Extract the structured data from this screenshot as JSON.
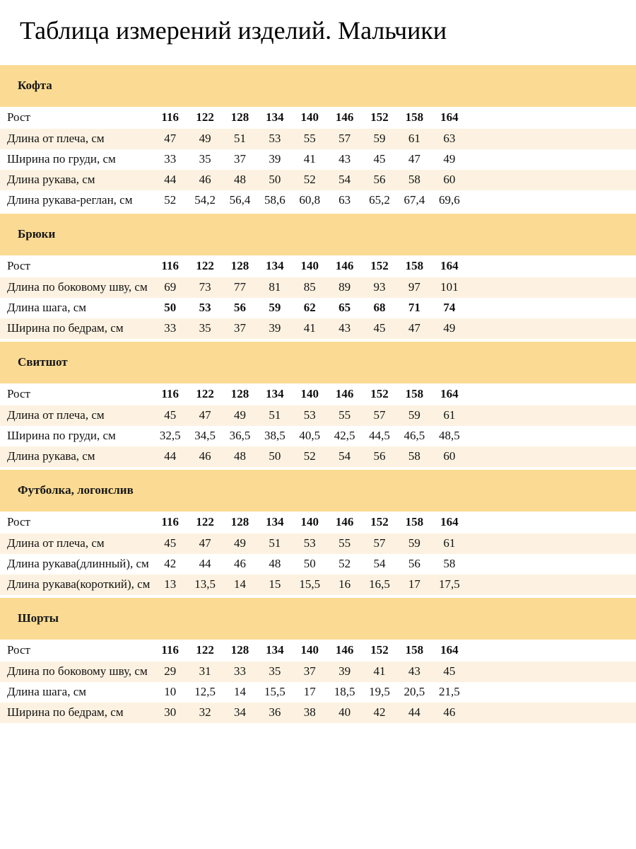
{
  "title": "Таблица измерений изделий. Мальчики",
  "columns_label": "Рост",
  "sizes": [
    "116",
    "122",
    "128",
    "134",
    "140",
    "146",
    "152",
    "158",
    "164"
  ],
  "colors": {
    "band": "#fbdb94",
    "row_alt": "#fdf2e1"
  },
  "sections": [
    {
      "name": "Кофта",
      "rows": [
        {
          "label": "Длина от плеча, см",
          "values": [
            "47",
            "49",
            "51",
            "53",
            "55",
            "57",
            "59",
            "61",
            "63"
          ]
        },
        {
          "label": "Ширина по груди, см",
          "values": [
            "33",
            "35",
            "37",
            "39",
            "41",
            "43",
            "45",
            "47",
            "49"
          ]
        },
        {
          "label": "Длина рукава, см",
          "values": [
            "44",
            "46",
            "48",
            "50",
            "52",
            "54",
            "56",
            "58",
            "60"
          ]
        },
        {
          "label": "Длина рукава-реглан, см",
          "values": [
            "52",
            "54,2",
            "56,4",
            "58,6",
            "60,8",
            "63",
            "65,2",
            "67,4",
            "69,6"
          ]
        }
      ]
    },
    {
      "name": "Брюки",
      "rows": [
        {
          "label": "Длина по боковому шву, см",
          "values": [
            "69",
            "73",
            "77",
            "81",
            "85",
            "89",
            "93",
            "97",
            "101"
          ]
        },
        {
          "label": "Длина шага, см",
          "values": [
            "50",
            "53",
            "56",
            "59",
            "62",
            "65",
            "68",
            "71",
            "74"
          ],
          "bold": true
        },
        {
          "label": "Ширина по бедрам, см",
          "values": [
            "33",
            "35",
            "37",
            "39",
            "41",
            "43",
            "45",
            "47",
            "49"
          ]
        }
      ]
    },
    {
      "name": "Свитшот",
      "rows": [
        {
          "label": "Длина от плеча, см",
          "values": [
            "45",
            "47",
            "49",
            "51",
            "53",
            "55",
            "57",
            "59",
            "61"
          ]
        },
        {
          "label": "Ширина по груди, см",
          "values": [
            "32,5",
            "34,5",
            "36,5",
            "38,5",
            "40,5",
            "42,5",
            "44,5",
            "46,5",
            "48,5"
          ]
        },
        {
          "label": "Длина рукава, см",
          "values": [
            "44",
            "46",
            "48",
            "50",
            "52",
            "54",
            "56",
            "58",
            "60"
          ]
        }
      ]
    },
    {
      "name": "Футболка, логонслив",
      "rows": [
        {
          "label": "Длина от плеча, см",
          "values": [
            "45",
            "47",
            "49",
            "51",
            "53",
            "55",
            "57",
            "59",
            "61"
          ]
        },
        {
          "label": "Длина рукава(длинный), см",
          "values": [
            "42",
            "44",
            "46",
            "48",
            "50",
            "52",
            "54",
            "56",
            "58"
          ]
        },
        {
          "label": "Длина рукава(короткий), см",
          "values": [
            "13",
            "13,5",
            "14",
            "15",
            "15,5",
            "16",
            "16,5",
            "17",
            "17,5"
          ]
        }
      ]
    },
    {
      "name": "Шорты",
      "rows": [
        {
          "label": "Длина по боковому шву, см",
          "values": [
            "29",
            "31",
            "33",
            "35",
            "37",
            "39",
            "41",
            "43",
            "45"
          ]
        },
        {
          "label": "Длина шага, см",
          "values": [
            "10",
            "12,5",
            "14",
            "15,5",
            "17",
            "18,5",
            "19,5",
            "20,5",
            "21,5"
          ]
        },
        {
          "label": "Ширина по бедрам, см",
          "values": [
            "30",
            "32",
            "34",
            "36",
            "38",
            "40",
            "42",
            "44",
            "46"
          ]
        }
      ]
    }
  ]
}
